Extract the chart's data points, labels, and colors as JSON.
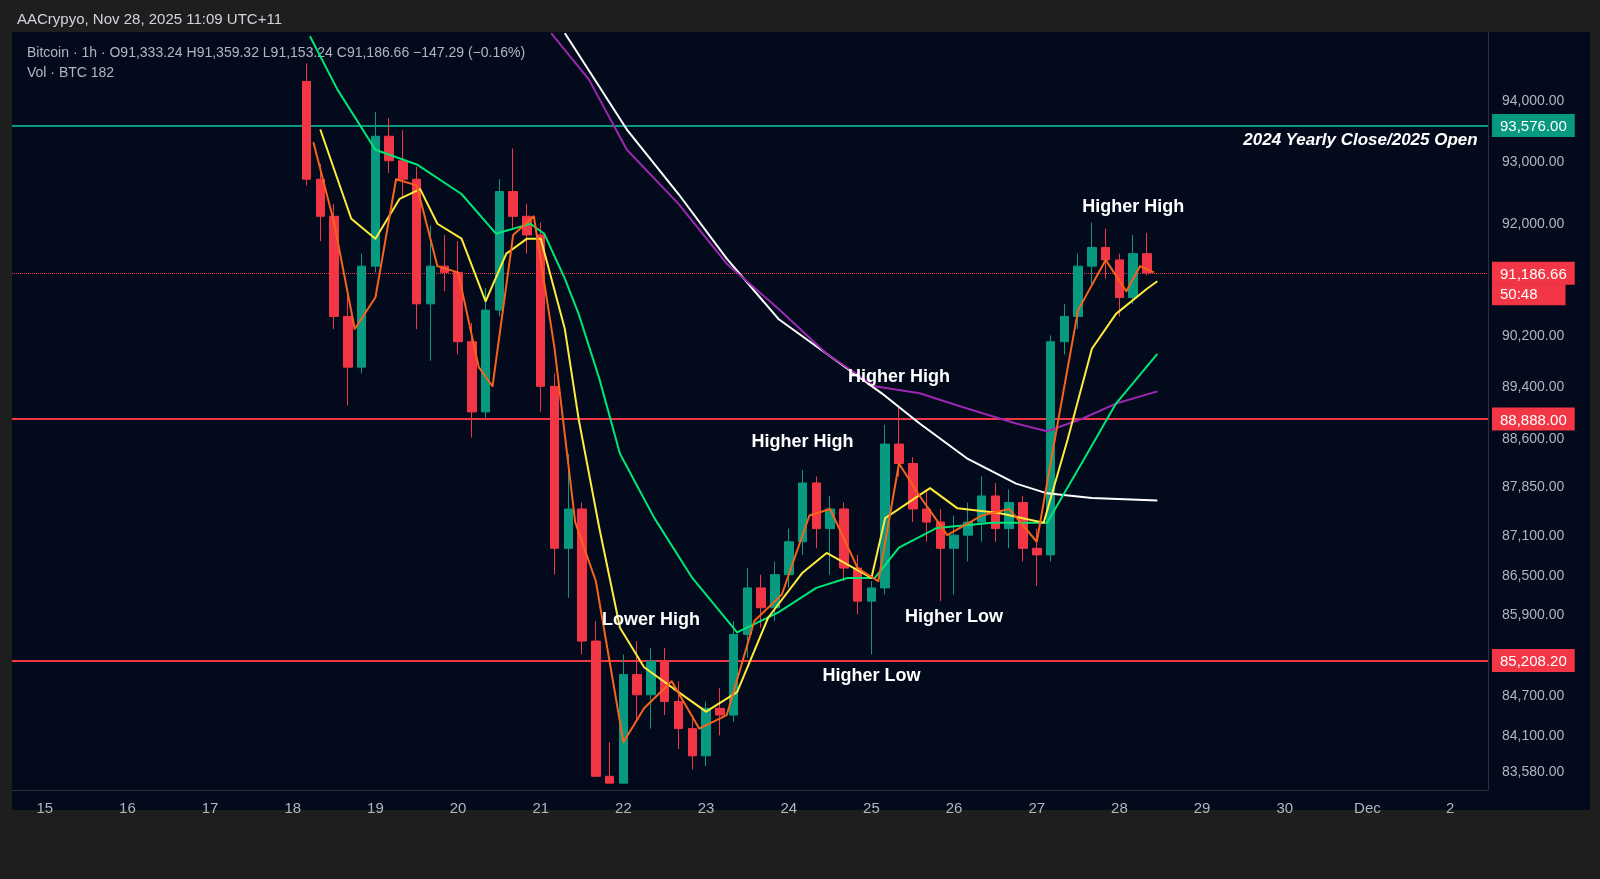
{
  "chart_data": {
    "type": "candlestick",
    "title": "AACrypyo, Nov 28, 2025 11:09 UTC+11",
    "subtitle": "Bitcoin · 1h · O91,333.24 H91,359.32 L91,153.24 C91,186.66 −147.29 (−0.16%)",
    "annotations": [
      "Vol · BTC 182",
      {
        "text": "2024 Yearly Close/2025 Open",
        "x": "2025-12-02T08:00",
        "y": 93576
      },
      {
        "text": "50:48",
        "x": "2025-12-02T11:00",
        "y": 91186.66
      },
      {
        "text": "Higher High",
        "x": "2025-11-28T04:00",
        "y": 91800
      },
      {
        "text": "Higher High",
        "x": "2025-11-25T08:00",
        "y": 89100
      },
      {
        "text": "Higher High",
        "x": "2025-11-24T04:00",
        "y": 88100
      },
      {
        "text": "Lower High",
        "x": "2025-11-22T08:00",
        "y": 85400
      },
      {
        "text": "Higher Low",
        "x": "2025-11-26T00:00",
        "y": 86200
      },
      {
        "text": "Higher Low",
        "x": "2025-11-25T00:00",
        "y": 85300
      }
    ],
    "x": [
      "2025-11-18T04:00",
      "2025-11-18T08:00",
      "2025-11-18T12:00",
      "2025-11-18T16:00",
      "2025-11-18T20:00",
      "2025-11-19T00:00",
      "2025-11-19T04:00",
      "2025-11-19T08:00",
      "2025-11-19T12:00",
      "2025-11-19T16:00",
      "2025-11-19T20:00",
      "2025-11-20T00:00",
      "2025-11-20T04:00",
      "2025-11-20T08:00",
      "2025-11-20T12:00",
      "2025-11-20T16:00",
      "2025-11-20T20:00",
      "2025-11-21T00:00",
      "2025-11-21T04:00",
      "2025-11-21T08:00",
      "2025-11-21T12:00",
      "2025-11-21T16:00",
      "2025-11-21T20:00",
      "2025-11-22T00:00",
      "2025-11-22T04:00",
      "2025-11-22T08:00",
      "2025-11-22T12:00",
      "2025-11-22T16:00",
      "2025-11-22T20:00",
      "2025-11-23T00:00",
      "2025-11-23T04:00",
      "2025-11-23T08:00",
      "2025-11-23T12:00",
      "2025-11-23T16:00",
      "2025-11-23T20:00",
      "2025-11-24T00:00",
      "2025-11-24T04:00",
      "2025-11-24T08:00",
      "2025-11-24T12:00",
      "2025-11-24T16:00",
      "2025-11-24T20:00",
      "2025-11-25T00:00",
      "2025-11-25T04:00",
      "2025-11-25T08:00",
      "2025-11-25T12:00",
      "2025-11-25T16:00",
      "2025-11-25T20:00",
      "2025-11-26T00:00",
      "2025-11-26T04:00",
      "2025-11-26T08:00",
      "2025-11-26T12:00",
      "2025-11-26T16:00",
      "2025-11-26T20:00",
      "2025-11-27T00:00",
      "2025-11-27T04:00",
      "2025-11-27T08:00",
      "2025-11-27T12:00",
      "2025-11-27T16:00",
      "2025-11-27T20:00",
      "2025-11-28T00:00",
      "2025-11-28T04:00",
      "2025-11-28T08:00"
    ],
    "ohlc": [
      [
        94300,
        94600,
        92600,
        92700
      ],
      [
        92700,
        92950,
        91700,
        92100
      ],
      [
        92100,
        92300,
        90300,
        90500
      ],
      [
        90500,
        90900,
        89100,
        89700
      ],
      [
        89700,
        91500,
        89600,
        91300
      ],
      [
        91300,
        93800,
        91200,
        93400
      ],
      [
        93400,
        93700,
        92800,
        93000
      ],
      [
        93000,
        93500,
        92400,
        92700
      ],
      [
        92700,
        92900,
        90300,
        90700
      ],
      [
        90700,
        91950,
        89800,
        91300
      ],
      [
        91300,
        91800,
        90900,
        91200
      ],
      [
        91200,
        91700,
        89900,
        90100
      ],
      [
        90100,
        90400,
        88600,
        89000
      ],
      [
        89000,
        90950,
        88900,
        90600
      ],
      [
        90600,
        92700,
        90500,
        92500
      ],
      [
        92500,
        93200,
        91900,
        92100
      ],
      [
        92100,
        92300,
        91500,
        91800
      ],
      [
        91800,
        92000,
        89000,
        89400
      ],
      [
        89400,
        89600,
        86500,
        86900
      ],
      [
        86900,
        88350,
        86150,
        87500
      ],
      [
        87500,
        87600,
        85300,
        85500
      ],
      [
        85500,
        85800,
        83500,
        83500
      ],
      [
        83500,
        84000,
        83400,
        83400
      ],
      [
        83400,
        85300,
        83400,
        85000
      ],
      [
        85000,
        85500,
        84300,
        84700
      ],
      [
        84700,
        85400,
        84200,
        85200
      ],
      [
        85200,
        85400,
        84400,
        84600
      ],
      [
        84600,
        84900,
        83900,
        84200
      ],
      [
        84200,
        84400,
        83600,
        83800
      ],
      [
        83800,
        84600,
        83650,
        84500
      ],
      [
        84500,
        84800,
        84100,
        84400
      ],
      [
        84400,
        85800,
        84300,
        85600
      ],
      [
        85600,
        86600,
        85250,
        86300
      ],
      [
        86300,
        86500,
        85700,
        86000
      ],
      [
        86000,
        86700,
        85800,
        86500
      ],
      [
        86500,
        87200,
        86300,
        87000
      ],
      [
        87000,
        88100,
        86800,
        87900
      ],
      [
        87900,
        88000,
        86900,
        87200
      ],
      [
        87200,
        87700,
        86500,
        87500
      ],
      [
        87500,
        87600,
        86400,
        86600
      ],
      [
        86600,
        86800,
        85900,
        86100
      ],
      [
        86100,
        86400,
        85300,
        86300
      ],
      [
        86300,
        88800,
        86200,
        88500
      ],
      [
        88500,
        89100,
        88000,
        88200
      ],
      [
        88200,
        88300,
        87300,
        87500
      ],
      [
        87500,
        87800,
        87000,
        87300
      ],
      [
        87300,
        87500,
        86100,
        86900
      ],
      [
        86900,
        87400,
        86200,
        87100
      ],
      [
        87100,
        87600,
        86700,
        87300
      ],
      [
        87300,
        88000,
        87000,
        87700
      ],
      [
        87700,
        87900,
        87000,
        87200
      ],
      [
        87200,
        87800,
        86900,
        87600
      ],
      [
        87600,
        87700,
        86700,
        86900
      ],
      [
        86900,
        87200,
        86330,
        86800
      ],
      [
        86800,
        90200,
        86700,
        90100
      ],
      [
        90100,
        90700,
        89900,
        90500
      ],
      [
        90500,
        91500,
        90300,
        91300
      ],
      [
        91300,
        92000,
        91000,
        91600
      ],
      [
        91600,
        91900,
        91100,
        91400
      ],
      [
        91400,
        91500,
        90500,
        90800
      ],
      [
        90800,
        91800,
        90700,
        91500
      ],
      [
        91500,
        91830,
        91150,
        91190
      ]
    ],
    "colors": [
      "#f23645",
      "#f23645",
      "#f23645",
      "#f23645",
      "#089981",
      "#089981",
      "#f23645",
      "#f23645",
      "#f23645",
      "#089981",
      "#f23645",
      "#f23645",
      "#f23645",
      "#089981",
      "#089981",
      "#f23645",
      "#f23645",
      "#f23645",
      "#f23645",
      "#089981",
      "#f23645",
      "#f23645",
      "#f23645",
      "#089981",
      "#f23645",
      "#089981",
      "#f23645",
      "#f23645",
      "#f23645",
      "#089981",
      "#f23645",
      "#089981",
      "#089981",
      "#f23645",
      "#089981",
      "#089981",
      "#089981",
      "#f23645",
      "#089981",
      "#f23645",
      "#f23645",
      "#089981",
      "#089981",
      "#f23645",
      "#f23645",
      "#f23645",
      "#f23645",
      "#089981",
      "#089981",
      "#089981",
      "#f23645",
      "#089981",
      "#f23645",
      "#f23645",
      "#089981",
      "#089981",
      "#089981",
      "#089981",
      "#f23645",
      "#f23645",
      "#089981",
      "#f23645"
    ],
    "series": [
      {
        "type": "line",
        "color": "#ffffff",
        "x": [
          "2025-11-21T07:00",
          "2025-11-21T11:00",
          "2025-11-22T01:00",
          "2025-11-22T16:00",
          "2025-11-23T06:00",
          "2025-11-23T21:00",
          "2025-11-24T11:00",
          "2025-11-25T03:00",
          "2025-11-25T14:00",
          "2025-11-26T04:00",
          "2025-11-26T18:00",
          "2025-11-27T03:00",
          "2025-11-27T16:00",
          "2025-11-28T11:00"
        ],
        "values": [
          95100,
          94745,
          93510,
          92460,
          91420,
          90460,
          89910,
          89290,
          88820,
          88270,
          87890,
          87740,
          87670,
          87630
        ]
      },
      {
        "type": "line",
        "color": "#9c27b0",
        "x": [
          "2025-11-21T03:00",
          "2025-11-21T14:00",
          "2025-11-22T01:00",
          "2025-11-22T16:00",
          "2025-11-23T06:00",
          "2025-11-23T21:00",
          "2025-11-24T11:00",
          "2025-11-25T01:00",
          "2025-11-25T14:00",
          "2025-11-26T04:00",
          "2025-11-26T18:00",
          "2025-11-27T03:00",
          "2025-11-27T13:00",
          "2025-11-27T23:00",
          "2025-11-28T11:00"
        ],
        "values": [
          95100,
          94330,
          93180,
          92300,
          91340,
          90620,
          89910,
          89400,
          89290,
          89050,
          88820,
          88700,
          88890,
          89130,
          89320
        ]
      },
      {
        "type": "line",
        "color": "#00e676",
        "x": [
          "2025-11-18T05:00",
          "2025-11-18T13:00",
          "2025-11-19T00:00",
          "2025-11-19T12:00",
          "2025-11-20T01:00",
          "2025-11-20T11:00",
          "2025-11-20T21:00",
          "2025-11-21T01:00",
          "2025-11-21T07:00",
          "2025-11-21T11:00",
          "2025-11-21T17:00",
          "2025-11-21T23:00",
          "2025-11-22T09:00",
          "2025-11-22T20:00",
          "2025-11-23T09:00",
          "2025-11-23T21:00",
          "2025-11-24T08:00",
          "2025-11-24T17:00",
          "2025-11-25T01:00",
          "2025-11-25T08:00",
          "2025-11-25T19:00",
          "2025-11-26T11:00",
          "2025-11-27T03:00",
          "2025-11-27T13:00",
          "2025-11-27T23:00",
          "2025-11-28T11:00"
        ],
        "values": [
          95050,
          94165,
          93180,
          92940,
          92460,
          91820,
          91980,
          91820,
          91100,
          90540,
          89520,
          88350,
          87360,
          86450,
          85630,
          85930,
          86300,
          86450,
          86450,
          86910,
          87210,
          87290,
          87290,
          88200,
          89130,
          89910
        ]
      },
      {
        "type": "line",
        "color": "#ffeb3b",
        "x": [
          "2025-11-18T08:00",
          "2025-11-18T17:00",
          "2025-11-19T00:00",
          "2025-11-19T07:00",
          "2025-11-19T13:00",
          "2025-11-19T18:00",
          "2025-11-20T01:00",
          "2025-11-20T08:00",
          "2025-11-20T14:00",
          "2025-11-20T20:00",
          "2025-11-21T00:00",
          "2025-11-21T07:00",
          "2025-11-21T11:00",
          "2025-11-21T17:00",
          "2025-11-21T23:00",
          "2025-11-22T06:00",
          "2025-11-22T16:00",
          "2025-11-23T00:00",
          "2025-11-23T09:00",
          "2025-11-23T18:00",
          "2025-11-24T04:00",
          "2025-11-24T11:00",
          "2025-11-25T00:00",
          "2025-11-25T04:00",
          "2025-11-25T17:00",
          "2025-11-26T01:00",
          "2025-11-26T13:00",
          "2025-11-27T02:00",
          "2025-11-27T09:00",
          "2025-11-27T16:00",
          "2025-11-27T23:00",
          "2025-11-28T08:00",
          "2025-11-28T11:00"
        ],
        "values": [
          93510,
          92060,
          91740,
          92380,
          92540,
          91980,
          91740,
          90740,
          91500,
          91740,
          91740,
          90300,
          88890,
          87210,
          85700,
          85110,
          84740,
          84450,
          84740,
          85850,
          86530,
          86830,
          86450,
          87360,
          87820,
          87510,
          87440,
          87290,
          88580,
          89990,
          90540,
          90940,
          91060
        ]
      },
      {
        "type": "line",
        "color": "#f7631b",
        "x": [
          "2025-11-18T06:00",
          "2025-11-18T12:00",
          "2025-11-18T18:00",
          "2025-11-19T00:00",
          "2025-11-19T06:00",
          "2025-11-19T12:00",
          "2025-11-19T18:00",
          "2025-11-20T00:00",
          "2025-11-20T06:00",
          "2025-11-20T10:00",
          "2025-11-20T16:00",
          "2025-11-20T22:00",
          "2025-11-21T04:00",
          "2025-11-21T10:00",
          "2025-11-21T16:00",
          "2025-11-22T00:00",
          "2025-11-22T06:00",
          "2025-11-22T14:00",
          "2025-11-22T22:00",
          "2025-11-23T06:00",
          "2025-11-23T14:00",
          "2025-11-23T22:00",
          "2025-11-24T06:00",
          "2025-11-24T12:00",
          "2025-11-24T20:00",
          "2025-11-25T02:00",
          "2025-11-25T08:00",
          "2025-11-25T14:00",
          "2025-11-25T22:00",
          "2025-11-26T08:00",
          "2025-11-26T16:00",
          "2025-11-27T00:00",
          "2025-11-27T06:00",
          "2025-11-27T12:00",
          "2025-11-27T20:00",
          "2025-11-28T02:00",
          "2025-11-28T06:00",
          "2025-11-28T10:00"
        ],
        "values": [
          93300,
          92000,
          90300,
          90800,
          92700,
          92600,
          91300,
          91200,
          89700,
          89400,
          91800,
          92100,
          90000,
          87300,
          86400,
          84000,
          84500,
          84900,
          84200,
          84400,
          85800,
          86200,
          87400,
          87500,
          86600,
          86400,
          88200,
          87700,
          87100,
          87400,
          87500,
          87000,
          88800,
          90600,
          91400,
          90900,
          91300,
          91200
        ]
      }
    ],
    "marker": "none",
    "ylim": [
      83300,
      95120
    ],
    "log": "y",
    "yticks": [
      {
        "value": 94000,
        "label": "94,000.00"
      },
      {
        "value": 93000,
        "label": "93,000.00"
      },
      {
        "value": 92000,
        "label": "92,000.00"
      },
      {
        "value": 90200,
        "label": "90,200.00"
      },
      {
        "value": 89400,
        "label": "89,400.00"
      },
      {
        "value": 88600,
        "label": "88,600.00"
      },
      {
        "value": 87850,
        "label": "87,850.00"
      },
      {
        "value": 87100,
        "label": "87,100.00"
      },
      {
        "value": 86500,
        "label": "86,500.00"
      },
      {
        "value": 85900,
        "label": "85,900.00"
      },
      {
        "value": 84700,
        "label": "84,700.00"
      },
      {
        "value": 84100,
        "label": "84,100.00"
      },
      {
        "value": 83580,
        "label": "83,580.00"
      }
    ],
    "xlim": [
      "2025-11-14T14:30",
      "2025-12-02T11:00"
    ],
    "xticks": [
      {
        "value": "2025-11-15",
        "label": "15"
      },
      {
        "value": "2025-11-16",
        "label": "16"
      },
      {
        "value": "2025-11-17",
        "label": "17"
      },
      {
        "value": "2025-11-18",
        "label": "18"
      },
      {
        "value": "2025-11-19",
        "label": "19"
      },
      {
        "value": "2025-11-20",
        "label": "20"
      },
      {
        "value": "2025-11-21",
        "label": "21"
      },
      {
        "value": "2025-11-22",
        "label": "22"
      },
      {
        "value": "2025-11-23",
        "label": "23"
      },
      {
        "value": "2025-11-24",
        "label": "24"
      },
      {
        "value": "2025-11-25",
        "label": "25"
      },
      {
        "value": "2025-11-26",
        "label": "26"
      },
      {
        "value": "2025-11-27",
        "label": "27"
      },
      {
        "value": "2025-11-28",
        "label": "28"
      },
      {
        "value": "2025-11-29",
        "label": "29"
      },
      {
        "value": "2025-11-30",
        "label": "30"
      },
      {
        "value": "2025-12-01",
        "label": "Dec"
      },
      {
        "value": "2025-12-02",
        "label": "2"
      }
    ],
    "ref_lines": [
      {
        "axis": "y",
        "value": 93576,
        "label": "93,576.00",
        "color": "#089981",
        "line_style": "solid"
      },
      {
        "axis": "y",
        "value": 91186.66,
        "label": "91,186.66",
        "color": "#f23645",
        "line_style": "dotted"
      },
      {
        "axis": "y",
        "value": 88888,
        "label": "88,888.00",
        "color": "#f23645",
        "line_style": "solid"
      },
      {
        "axis": "y",
        "value": 85208.2,
        "label": "85,208.20",
        "color": "#f23645",
        "line_style": "solid"
      }
    ],
    "grid": false
  }
}
